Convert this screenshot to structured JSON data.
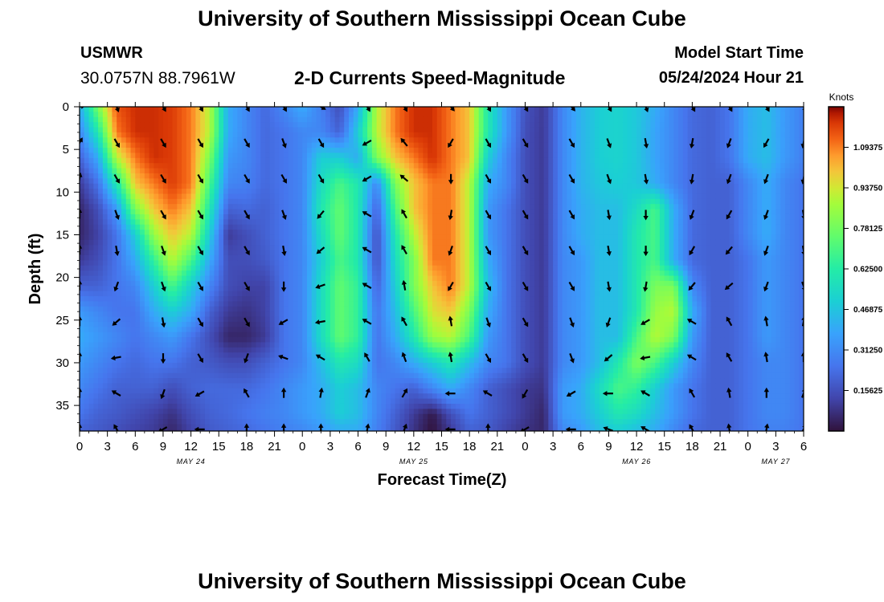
{
  "titles": {
    "main": "University of Southern Mississippi Ocean Cube",
    "repeat": "University of Southern Mississippi Ocean Cube"
  },
  "station": {
    "name": "USMWR",
    "coords": "30.0757N  88.7961W"
  },
  "model_start": {
    "label": "Model Start Time",
    "value": "05/24/2024 Hour 21"
  },
  "chart_data": {
    "type": "heatmap",
    "title": "2-D Currents Speed-Magnitude",
    "xlabel": "Forecast Time(Z)",
    "ylabel": "Depth (ft)",
    "xlim": [
      0,
      78
    ],
    "ylim": [
      0,
      38
    ],
    "x_ticks": [
      {
        "h": 0,
        "label": "0"
      },
      {
        "h": 3,
        "label": "3"
      },
      {
        "h": 6,
        "label": "6"
      },
      {
        "h": 9,
        "label": "9"
      },
      {
        "h": 12,
        "label": "12"
      },
      {
        "h": 15,
        "label": "15"
      },
      {
        "h": 18,
        "label": "18"
      },
      {
        "h": 21,
        "label": "21"
      },
      {
        "h": 24,
        "label": "0"
      },
      {
        "h": 27,
        "label": "3"
      },
      {
        "h": 30,
        "label": "6"
      },
      {
        "h": 33,
        "label": "9"
      },
      {
        "h": 36,
        "label": "12"
      },
      {
        "h": 39,
        "label": "15"
      },
      {
        "h": 42,
        "label": "18"
      },
      {
        "h": 45,
        "label": "21"
      },
      {
        "h": 48,
        "label": "0"
      },
      {
        "h": 51,
        "label": "3"
      },
      {
        "h": 54,
        "label": "6"
      },
      {
        "h": 57,
        "label": "9"
      },
      {
        "h": 60,
        "label": "12"
      },
      {
        "h": 63,
        "label": "15"
      },
      {
        "h": 66,
        "label": "18"
      },
      {
        "h": 69,
        "label": "21"
      },
      {
        "h": 72,
        "label": "0"
      },
      {
        "h": 75,
        "label": "3"
      },
      {
        "h": 78,
        "label": "6"
      }
    ],
    "y_ticks": [
      {
        "d": 0,
        "label": "0"
      },
      {
        "d": 5,
        "label": "5"
      },
      {
        "d": 10,
        "label": "10"
      },
      {
        "d": 15,
        "label": "15"
      },
      {
        "d": 20,
        "label": "20"
      },
      {
        "d": 25,
        "label": "25"
      },
      {
        "d": 30,
        "label": "30"
      },
      {
        "d": 35,
        "label": "35"
      }
    ],
    "day_labels": [
      {
        "h": 12,
        "label": "MAY 24"
      },
      {
        "h": 36,
        "label": "MAY 25"
      },
      {
        "h": 60,
        "label": "MAY 26"
      },
      {
        "h": 75,
        "label": "MAY 27"
      }
    ],
    "colorbar": {
      "unit": "Knots",
      "range": [
        0,
        1.25
      ],
      "ticks": [
        {
          "v": 0.15625,
          "label": "0.15625"
        },
        {
          "v": 0.3125,
          "label": "0.31250"
        },
        {
          "v": 0.46875,
          "label": "0.46875"
        },
        {
          "v": 0.625,
          "label": "0.62500"
        },
        {
          "v": 0.78125,
          "label": "0.78125"
        },
        {
          "v": 0.9375,
          "label": "0.93750"
        },
        {
          "v": 1.09375,
          "label": "1.09375"
        }
      ]
    },
    "grid": {
      "x_hours": [
        0,
        2,
        4,
        6,
        8,
        10,
        12,
        14,
        16,
        18,
        20,
        22,
        24,
        26,
        28,
        30,
        32,
        34,
        36,
        38,
        40,
        42,
        44,
        46,
        48,
        50,
        52,
        54,
        56,
        58,
        60,
        62,
        64,
        66,
        68,
        70,
        72,
        74,
        76,
        78
      ],
      "depths_ft": [
        0,
        3,
        6,
        9,
        12,
        15,
        18,
        21,
        24,
        27,
        30,
        33,
        36,
        38
      ],
      "speed_knots": [
        [
          0.4,
          0.8,
          1.15,
          1.2,
          1.2,
          1.18,
          1.1,
          0.9,
          0.4,
          0.3,
          0.22,
          0.3,
          0.4,
          0.28,
          0.15,
          0.4,
          0.9,
          1.1,
          1.2,
          1.2,
          1.1,
          1.0,
          0.6,
          0.35,
          0.16,
          0.1,
          0.3,
          0.42,
          0.5,
          0.52,
          0.48,
          0.4,
          0.3,
          0.22,
          0.2,
          0.25,
          0.4,
          0.45,
          0.35,
          0.28
        ],
        [
          0.3,
          0.6,
          1.1,
          1.2,
          1.2,
          1.18,
          1.1,
          0.9,
          0.4,
          0.3,
          0.22,
          0.25,
          0.3,
          0.3,
          0.2,
          0.5,
          0.9,
          1.1,
          1.2,
          1.2,
          1.1,
          1.0,
          0.6,
          0.35,
          0.15,
          0.1,
          0.3,
          0.42,
          0.5,
          0.52,
          0.48,
          0.38,
          0.3,
          0.22,
          0.2,
          0.25,
          0.4,
          0.45,
          0.35,
          0.28
        ],
        [
          0.2,
          0.4,
          0.9,
          1.1,
          1.2,
          1.18,
          1.1,
          0.8,
          0.35,
          0.3,
          0.22,
          0.25,
          0.3,
          0.5,
          0.5,
          0.4,
          0.8,
          1.0,
          1.1,
          1.2,
          1.1,
          1.0,
          0.5,
          0.3,
          0.15,
          0.1,
          0.3,
          0.42,
          0.5,
          0.52,
          0.48,
          0.38,
          0.3,
          0.22,
          0.2,
          0.25,
          0.4,
          0.45,
          0.35,
          0.28
        ],
        [
          0.1,
          0.25,
          0.6,
          1.0,
          1.1,
          1.18,
          1.1,
          0.7,
          0.3,
          0.28,
          0.22,
          0.25,
          0.3,
          0.55,
          0.7,
          0.6,
          0.3,
          0.8,
          1.0,
          1.1,
          1.1,
          0.9,
          0.4,
          0.3,
          0.15,
          0.1,
          0.3,
          0.42,
          0.48,
          0.5,
          0.48,
          0.4,
          0.3,
          0.22,
          0.2,
          0.2,
          0.3,
          0.4,
          0.3,
          0.25
        ],
        [
          0.05,
          0.15,
          0.35,
          0.8,
          1.0,
          1.1,
          1.0,
          0.6,
          0.2,
          0.22,
          0.2,
          0.25,
          0.3,
          0.6,
          0.75,
          0.6,
          0.2,
          0.7,
          1.0,
          1.1,
          1.1,
          0.9,
          0.35,
          0.25,
          0.15,
          0.1,
          0.3,
          0.4,
          0.45,
          0.45,
          0.55,
          0.7,
          0.4,
          0.22,
          0.2,
          0.2,
          0.3,
          0.4,
          0.3,
          0.25
        ],
        [
          0.05,
          0.12,
          0.25,
          0.5,
          0.85,
          1.0,
          0.9,
          0.5,
          0.1,
          0.15,
          0.2,
          0.25,
          0.3,
          0.55,
          0.75,
          0.6,
          0.15,
          0.6,
          0.9,
          1.1,
          1.1,
          0.9,
          0.35,
          0.25,
          0.15,
          0.1,
          0.3,
          0.4,
          0.45,
          0.45,
          0.6,
          0.7,
          0.4,
          0.22,
          0.2,
          0.2,
          0.3,
          0.4,
          0.3,
          0.25
        ],
        [
          0.1,
          0.15,
          0.25,
          0.4,
          0.65,
          0.9,
          0.7,
          0.4,
          0.15,
          0.15,
          0.18,
          0.25,
          0.3,
          0.5,
          0.7,
          0.6,
          0.15,
          0.55,
          0.8,
          1.1,
          1.1,
          0.9,
          0.4,
          0.25,
          0.15,
          0.1,
          0.3,
          0.35,
          0.45,
          0.45,
          0.6,
          0.7,
          0.4,
          0.22,
          0.2,
          0.2,
          0.25,
          0.35,
          0.3,
          0.25
        ],
        [
          0.2,
          0.2,
          0.25,
          0.3,
          0.5,
          0.7,
          0.5,
          0.3,
          0.15,
          0.12,
          0.12,
          0.25,
          0.3,
          0.55,
          0.75,
          0.65,
          0.2,
          0.5,
          0.8,
          1.0,
          1.1,
          0.9,
          0.45,
          0.25,
          0.15,
          0.1,
          0.3,
          0.35,
          0.45,
          0.45,
          0.6,
          0.8,
          0.8,
          0.3,
          0.2,
          0.2,
          0.25,
          0.35,
          0.3,
          0.25
        ],
        [
          0.35,
          0.3,
          0.25,
          0.25,
          0.4,
          0.5,
          0.4,
          0.2,
          0.1,
          0.08,
          0.12,
          0.25,
          0.3,
          0.55,
          0.75,
          0.65,
          0.25,
          0.45,
          0.7,
          0.95,
          1.0,
          0.8,
          0.4,
          0.25,
          0.15,
          0.1,
          0.3,
          0.35,
          0.45,
          0.45,
          0.6,
          0.85,
          0.9,
          0.4,
          0.2,
          0.2,
          0.25,
          0.35,
          0.3,
          0.25
        ],
        [
          0.4,
          0.35,
          0.3,
          0.25,
          0.3,
          0.35,
          0.25,
          0.15,
          0.05,
          0.05,
          0.1,
          0.25,
          0.3,
          0.55,
          0.75,
          0.65,
          0.25,
          0.4,
          0.6,
          0.85,
          0.9,
          0.7,
          0.35,
          0.25,
          0.15,
          0.1,
          0.3,
          0.35,
          0.45,
          0.45,
          0.7,
          0.9,
          0.8,
          0.35,
          0.2,
          0.2,
          0.25,
          0.35,
          0.3,
          0.25
        ],
        [
          0.35,
          0.3,
          0.25,
          0.22,
          0.25,
          0.25,
          0.2,
          0.18,
          0.15,
          0.15,
          0.2,
          0.25,
          0.3,
          0.45,
          0.6,
          0.55,
          0.25,
          0.3,
          0.4,
          0.5,
          0.6,
          0.45,
          0.3,
          0.25,
          0.15,
          0.1,
          0.3,
          0.35,
          0.45,
          0.6,
          0.8,
          0.7,
          0.5,
          0.3,
          0.2,
          0.2,
          0.25,
          0.3,
          0.3,
          0.25
        ],
        [
          0.3,
          0.25,
          0.2,
          0.2,
          0.2,
          0.15,
          0.2,
          0.22,
          0.22,
          0.22,
          0.25,
          0.3,
          0.35,
          0.4,
          0.5,
          0.45,
          0.3,
          0.25,
          0.2,
          0.3,
          0.4,
          0.3,
          0.2,
          0.15,
          0.1,
          0.08,
          0.35,
          0.4,
          0.55,
          0.7,
          0.65,
          0.5,
          0.35,
          0.25,
          0.2,
          0.2,
          0.25,
          0.3,
          0.3,
          0.25
        ],
        [
          0.25,
          0.2,
          0.18,
          0.15,
          0.12,
          0.08,
          0.15,
          0.2,
          0.22,
          0.25,
          0.28,
          0.3,
          0.35,
          0.4,
          0.5,
          0.45,
          0.3,
          0.2,
          0.1,
          0.02,
          0.15,
          0.25,
          0.2,
          0.15,
          0.1,
          0.05,
          0.35,
          0.4,
          0.5,
          0.6,
          0.55,
          0.45,
          0.35,
          0.25,
          0.2,
          0.2,
          0.25,
          0.3,
          0.3,
          0.25
        ],
        [
          0.2,
          0.18,
          0.15,
          0.12,
          0.1,
          0.05,
          0.12,
          0.18,
          0.2,
          0.22,
          0.25,
          0.28,
          0.3,
          0.35,
          0.4,
          0.4,
          0.28,
          0.18,
          0.08,
          0.0,
          0.1,
          0.2,
          0.18,
          0.12,
          0.08,
          0.05,
          0.3,
          0.35,
          0.45,
          0.5,
          0.45,
          0.4,
          0.3,
          0.22,
          0.2,
          0.2,
          0.25,
          0.28,
          0.28,
          0.25
        ]
      ],
      "arrow_hours": [
        0,
        4,
        9,
        13,
        18,
        22,
        26,
        31,
        35,
        40,
        44,
        48,
        53,
        57,
        61,
        66,
        70,
        74,
        78
      ],
      "arrow_depths_ft": [
        0,
        4.2,
        8.4,
        12.6,
        16.8,
        21,
        25.2,
        29.4,
        33.6,
        37.8
      ],
      "arrow_direction_deg": [
        [
          80,
          160,
          150,
          150,
          150,
          150,
          120,
          150,
          150,
          140,
          150,
          150,
          140,
          150,
          160,
          150,
          150,
          150,
          150
        ],
        [
          30,
          150,
          150,
          150,
          150,
          160,
          150,
          240,
          320,
          210,
          150,
          150,
          150,
          160,
          170,
          190,
          200,
          210,
          190
        ],
        [
          10,
          150,
          150,
          150,
          150,
          150,
          150,
          240,
          310,
          180,
          150,
          150,
          150,
          160,
          170,
          190,
          200,
          200,
          190
        ],
        [
          0,
          160,
          150,
          150,
          150,
          160,
          220,
          300,
          330,
          190,
          150,
          150,
          150,
          170,
          180,
          200,
          210,
          200,
          170
        ],
        [
          0,
          170,
          160,
          150,
          150,
          170,
          230,
          300,
          330,
          200,
          150,
          150,
          150,
          170,
          180,
          210,
          220,
          200,
          170
        ],
        [
          0,
          200,
          160,
          150,
          150,
          180,
          250,
          300,
          350,
          210,
          150,
          150,
          150,
          170,
          190,
          220,
          230,
          200,
          160
        ],
        [
          0,
          230,
          170,
          150,
          150,
          240,
          260,
          300,
          330,
          350,
          160,
          150,
          160,
          200,
          240,
          300,
          330,
          350,
          10
        ],
        [
          0,
          260,
          180,
          150,
          200,
          290,
          300,
          330,
          340,
          350,
          150,
          150,
          160,
          230,
          260,
          300,
          330,
          350,
          0
        ],
        [
          0,
          300,
          200,
          240,
          330,
          0,
          10,
          20,
          30,
          270,
          300,
          210,
          240,
          270,
          300,
          330,
          350,
          0,
          20
        ],
        [
          0,
          330,
          240,
          270,
          0,
          0,
          0,
          10,
          20,
          270,
          0,
          240,
          270,
          290,
          300,
          330,
          350,
          10,
          30
        ]
      ]
    }
  }
}
